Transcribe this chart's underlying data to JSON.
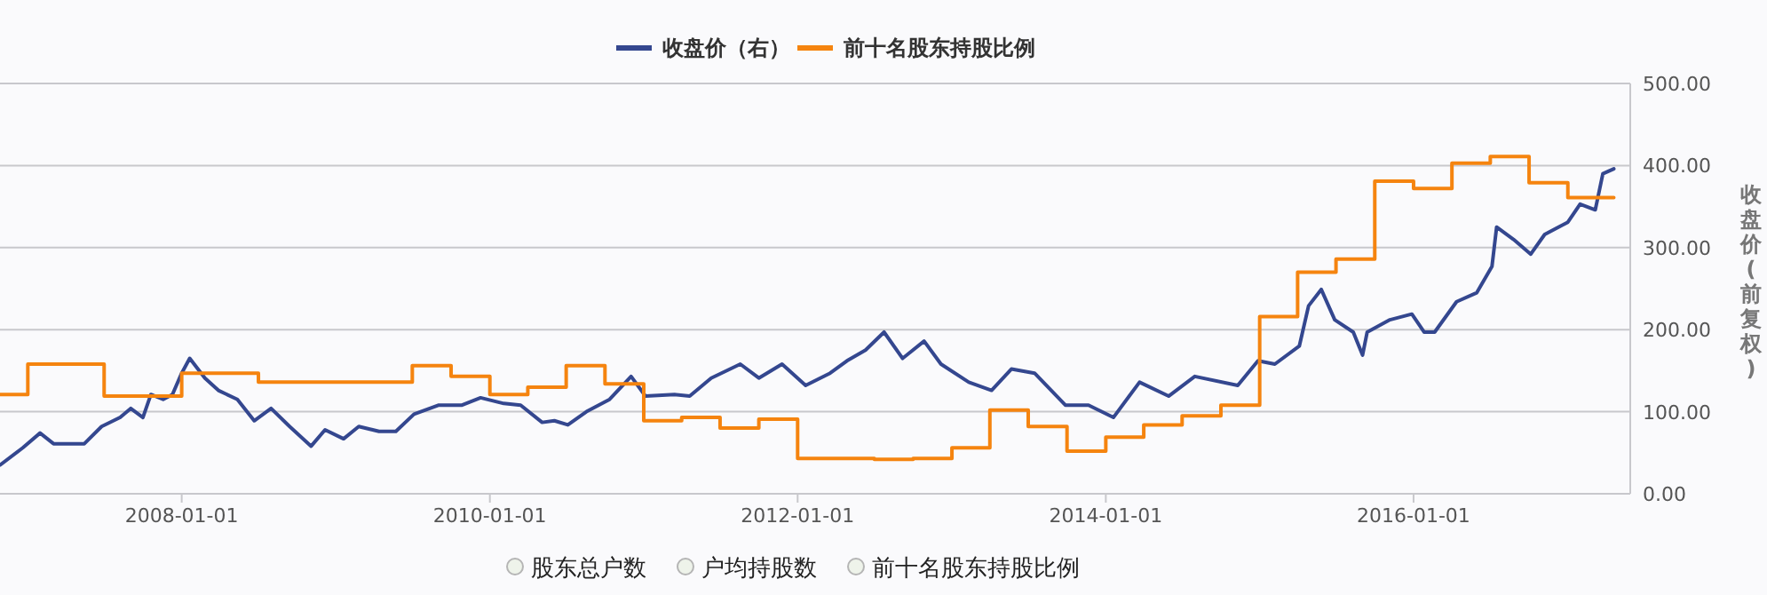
{
  "chart_data": {
    "type": "line",
    "y2label": "收盘价(前复权)",
    "xlim": [
      "2006-10-27",
      "2017-05-29"
    ],
    "xticks": [
      {
        "value": "2008-01-01",
        "label": "2008-01-01"
      },
      {
        "value": "2010-01-01",
        "label": "2010-01-01"
      },
      {
        "value": "2012-01-01",
        "label": "2012-01-01"
      },
      {
        "value": "2014-01-01",
        "label": "2014-01-01"
      },
      {
        "value": "2016-01-01",
        "label": "2016-01-01"
      }
    ],
    "y2lim": [
      0,
      500
    ],
    "y2ticks": [
      {
        "value": 0,
        "label": "0.00"
      },
      {
        "value": 100,
        "label": "100.00"
      },
      {
        "value": 200,
        "label": "200.00"
      },
      {
        "value": 300,
        "label": "300.00"
      },
      {
        "value": 400,
        "label": "400.00"
      },
      {
        "value": 500,
        "label": "500.00"
      }
    ],
    "grid": "y",
    "legend": "top",
    "series": [
      {
        "name": "收盘价（右）",
        "color": "#34478f",
        "type": "line",
        "axis": "y2",
        "x": [
          "2006-10-27",
          "2006-12-20",
          "2007-01-30",
          "2007-03-03",
          "2007-05-15",
          "2007-06-25",
          "2007-08-08",
          "2007-09-02",
          "2007-10-01",
          "2007-10-20",
          "2007-11-18",
          "2007-12-10",
          "2008-01-01",
          "2008-01-20",
          "2008-02-25",
          "2008-03-28",
          "2008-05-12",
          "2008-06-21",
          "2008-07-31",
          "2008-09-13",
          "2008-11-03",
          "2008-12-06",
          "2009-01-19",
          "2009-02-24",
          "2009-04-13",
          "2009-05-23",
          "2009-07-05",
          "2009-09-02",
          "2009-10-27",
          "2009-12-10",
          "2010-02-03",
          "2010-03-15",
          "2010-05-05",
          "2010-06-03",
          "2010-07-05",
          "2010-08-18",
          "2010-10-12",
          "2010-12-02",
          "2011-01-05",
          "2011-03-15",
          "2011-04-20",
          "2011-06-10",
          "2011-08-18",
          "2011-10-01",
          "2011-11-25",
          "2012-01-20",
          "2012-03-18",
          "2012-04-27",
          "2012-06-10",
          "2012-07-24",
          "2012-09-06",
          "2012-10-27",
          "2012-12-06",
          "2013-02-10",
          "2013-04-05",
          "2013-05-22",
          "2013-07-16",
          "2013-09-27",
          "2013-11-21",
          "2014-01-19",
          "2014-03-22",
          "2014-05-30",
          "2014-07-31",
          "2014-11-10",
          "2014-12-28",
          "2015-02-06",
          "2015-04-05",
          "2015-04-27",
          "2015-05-27",
          "2015-06-28",
          "2015-08-11",
          "2015-09-02",
          "2015-09-13",
          "2015-11-06",
          "2015-12-28",
          "2016-01-26",
          "2016-02-20",
          "2016-04-12",
          "2016-05-30",
          "2016-07-05",
          "2016-07-16",
          "2016-08-25",
          "2016-10-05",
          "2016-11-07",
          "2017-01-01",
          "2017-01-30",
          "2017-03-07",
          "2017-03-25",
          "2017-04-20"
        ],
        "values": [
          35,
          56,
          74,
          61,
          61,
          82,
          93,
          104,
          93,
          121,
          115,
          121,
          147,
          165,
          141,
          126,
          115,
          89,
          104,
          82,
          58,
          78,
          67,
          82,
          76,
          76,
          97,
          108,
          108,
          117,
          110,
          108,
          87,
          89,
          84,
          100,
          115,
          143,
          119,
          121,
          119,
          141,
          158,
          141,
          158,
          132,
          147,
          162,
          175,
          197,
          165,
          186,
          158,
          136,
          126,
          152,
          147,
          108,
          108,
          93,
          136,
          119,
          143,
          132,
          162,
          158,
          180,
          229,
          249,
          212,
          197,
          169,
          197,
          212,
          219,
          197,
          197,
          234,
          245,
          277,
          325,
          310,
          292,
          316,
          331,
          353,
          346,
          390,
          396
        ]
      },
      {
        "name": "前十名股东持股比例",
        "color": "#f5840f",
        "type": "step",
        "axis": "y2",
        "x": [
          "2006-10-27",
          "2007-01-01",
          "2007-07-01",
          "2008-01-01",
          "2008-07-01",
          "2009-07-01",
          "2009-10-01",
          "2010-01-01",
          "2010-04-01",
          "2010-07-01",
          "2010-10-01",
          "2011-01-01",
          "2011-04-01",
          "2011-07-01",
          "2011-10-01",
          "2012-01-01",
          "2012-07-01",
          "2012-10-01",
          "2013-01-01",
          "2013-04-01",
          "2013-07-01",
          "2013-10-01",
          "2014-01-01",
          "2014-04-01",
          "2014-07-01",
          "2014-10-01",
          "2015-01-01",
          "2015-04-01",
          "2015-07-01",
          "2015-10-01",
          "2016-01-01",
          "2016-04-01",
          "2016-07-01",
          "2016-10-01",
          "2017-01-01",
          "2017-04-20"
        ],
        "values": [
          121,
          158,
          119,
          147,
          136,
          156,
          143,
          121,
          130,
          156,
          134,
          89,
          93,
          80,
          91,
          43,
          42,
          43,
          56,
          102,
          82,
          52,
          69,
          84,
          95,
          108,
          216,
          270,
          286,
          381,
          372,
          403,
          411,
          379,
          361,
          361
        ]
      }
    ],
    "annotations": [
      "股东总户数",
      "户均持股数",
      "前十名股东持股比例"
    ]
  }
}
